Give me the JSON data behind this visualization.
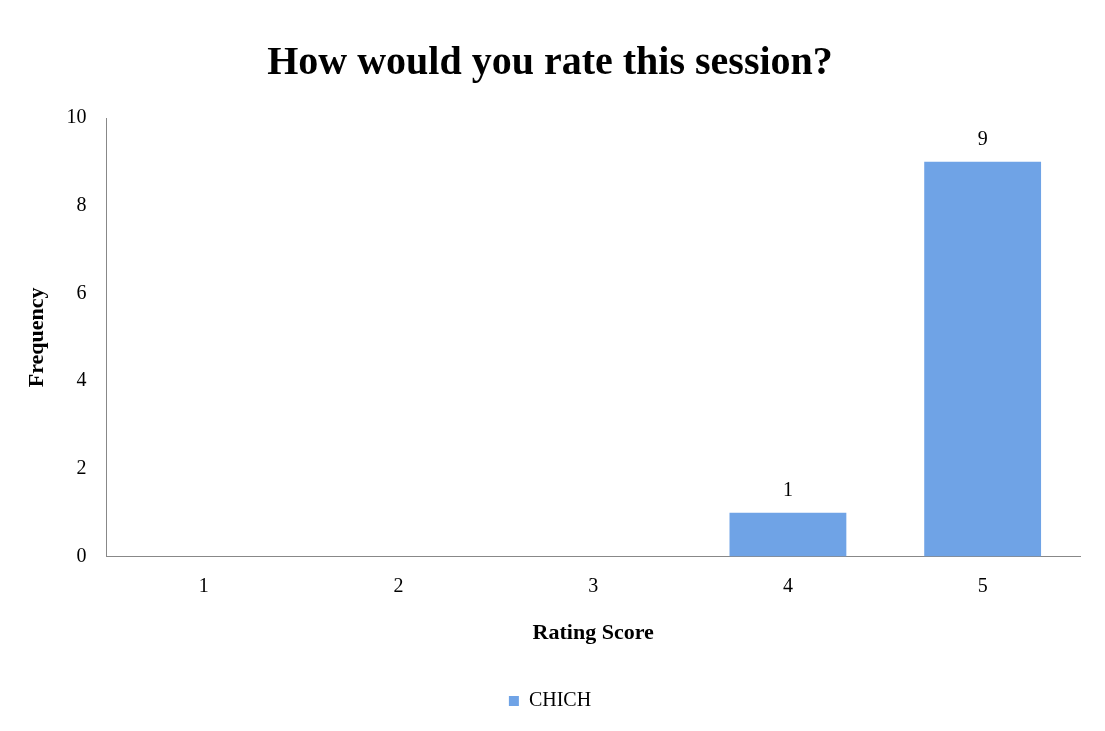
{
  "chart_data": {
    "type": "bar",
    "title": "How would you rate this session?",
    "xlabel": "Rating Score",
    "ylabel": "Frequency",
    "categories": [
      "1",
      "2",
      "3",
      "4",
      "5"
    ],
    "series": [
      {
        "name": "CHICH",
        "color": "#6fa3e6",
        "values": [
          0,
          0,
          0,
          1,
          9
        ],
        "value_labels": [
          null,
          null,
          null,
          "1",
          "9"
        ]
      }
    ],
    "ylim": [
      0,
      10
    ],
    "yticks": [
      0,
      2,
      4,
      6,
      8,
      10
    ],
    "grid": false,
    "legend": "bottom"
  }
}
